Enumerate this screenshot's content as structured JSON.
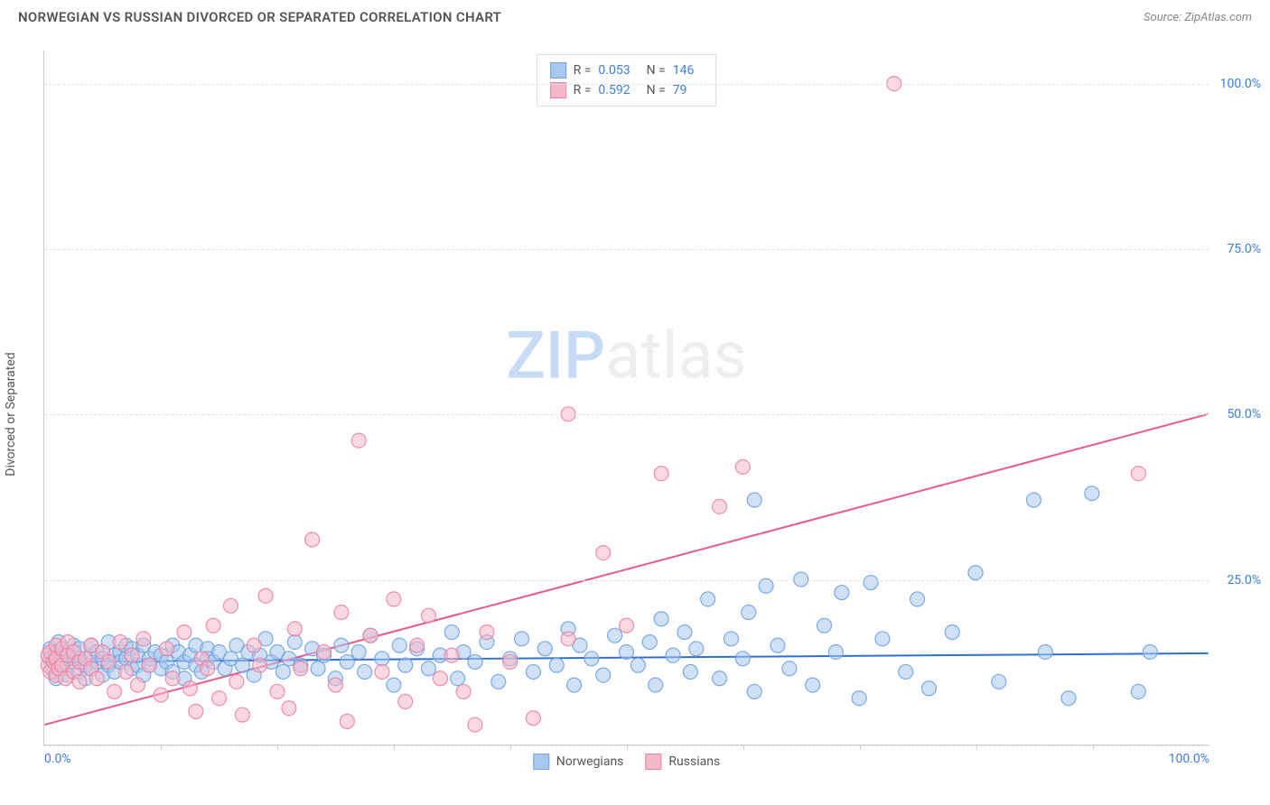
{
  "title": "NORWEGIAN VS RUSSIAN DIVORCED OR SEPARATED CORRELATION CHART",
  "source": "Source: ZipAtlas.com",
  "watermark_zip": "ZIP",
  "watermark_rest": "atlas",
  "ylabel": "Divorced or Separated",
  "chart": {
    "type": "scatter",
    "xlim": [
      0,
      100
    ],
    "ylim": [
      0,
      105
    ],
    "ytick_step": 25,
    "yticks": [
      "0.0%",
      "25.0%",
      "50.0%",
      "75.0%",
      "100.0%"
    ],
    "xticks_labels": {
      "0": "0.0%",
      "100": "100.0%"
    },
    "xminor_step": 10,
    "grid_color": "#e0e0e0",
    "axis_color": "#cccccc",
    "background": "#ffffff",
    "label_fontsize": 14,
    "tick_color": "#3b7dd8",
    "series": [
      {
        "name": "Norwegians",
        "color_fill": "#a9c8f0",
        "color_stroke": "#6ea2e0",
        "fill_opacity": 0.55,
        "stroke_opacity": 0.9,
        "marker_r": 8,
        "R": "0.053",
        "N": "146",
        "trend": {
          "y_at_x0": 12.5,
          "y_at_x100": 13.8,
          "color": "#2f6fd0",
          "width": 2
        },
        "points": [
          [
            0.5,
            13
          ],
          [
            0.5,
            14.5
          ],
          [
            0.8,
            11
          ],
          [
            1,
            12.5
          ],
          [
            1,
            14
          ],
          [
            1,
            10
          ],
          [
            1.2,
            15.5
          ],
          [
            1.5,
            13
          ],
          [
            1.5,
            11.5
          ],
          [
            1.8,
            14
          ],
          [
            2,
            12
          ],
          [
            2,
            13.5
          ],
          [
            2,
            10.5
          ],
          [
            2.5,
            15
          ],
          [
            2.5,
            12.5
          ],
          [
            3,
            11
          ],
          [
            3,
            13
          ],
          [
            3,
            14.5
          ],
          [
            3.5,
            12
          ],
          [
            3.5,
            10
          ],
          [
            4,
            13.5
          ],
          [
            4,
            15
          ],
          [
            4,
            11.5
          ],
          [
            4.5,
            12.5
          ],
          [
            4.5,
            14
          ],
          [
            5,
            13
          ],
          [
            5,
            10.5
          ],
          [
            5.5,
            12
          ],
          [
            5.5,
            15.5
          ],
          [
            6,
            13.5
          ],
          [
            6,
            11
          ],
          [
            6.5,
            14
          ],
          [
            6.5,
            12.5
          ],
          [
            7,
            13
          ],
          [
            7,
            15
          ],
          [
            7.5,
            11.5
          ],
          [
            7.5,
            14.5
          ],
          [
            8,
            12
          ],
          [
            8,
            13.5
          ],
          [
            8.5,
            10.5
          ],
          [
            8.5,
            15
          ],
          [
            9,
            13
          ],
          [
            9,
            12
          ],
          [
            9.5,
            14
          ],
          [
            10,
            11.5
          ],
          [
            10,
            13.5
          ],
          [
            10.5,
            12.5
          ],
          [
            11,
            15
          ],
          [
            11,
            11
          ],
          [
            11.5,
            14
          ],
          [
            12,
            12.5
          ],
          [
            12,
            10
          ],
          [
            12.5,
            13.5
          ],
          [
            13,
            15
          ],
          [
            13,
            12
          ],
          [
            13.5,
            11
          ],
          [
            14,
            14.5
          ],
          [
            14,
            13
          ],
          [
            14.5,
            12.5
          ],
          [
            15,
            14
          ],
          [
            15.5,
            11.5
          ],
          [
            16,
            13
          ],
          [
            16.5,
            15
          ],
          [
            17,
            12
          ],
          [
            17.5,
            14
          ],
          [
            18,
            10.5
          ],
          [
            18.5,
            13.5
          ],
          [
            19,
            16
          ],
          [
            19.5,
            12.5
          ],
          [
            20,
            14
          ],
          [
            20.5,
            11
          ],
          [
            21,
            13
          ],
          [
            21.5,
            15.5
          ],
          [
            22,
            12
          ],
          [
            23,
            14.5
          ],
          [
            23.5,
            11.5
          ],
          [
            24,
            13.5
          ],
          [
            25,
            10
          ],
          [
            25.5,
            15
          ],
          [
            26,
            12.5
          ],
          [
            27,
            14
          ],
          [
            27.5,
            11
          ],
          [
            28,
            16.5
          ],
          [
            29,
            13
          ],
          [
            30,
            9
          ],
          [
            30.5,
            15
          ],
          [
            31,
            12
          ],
          [
            32,
            14.5
          ],
          [
            33,
            11.5
          ],
          [
            34,
            13.5
          ],
          [
            35,
            17
          ],
          [
            35.5,
            10
          ],
          [
            36,
            14
          ],
          [
            37,
            12.5
          ],
          [
            38,
            15.5
          ],
          [
            39,
            9.5
          ],
          [
            40,
            13
          ],
          [
            41,
            16
          ],
          [
            42,
            11
          ],
          [
            43,
            14.5
          ],
          [
            44,
            12
          ],
          [
            45,
            17.5
          ],
          [
            45.5,
            9
          ],
          [
            46,
            15
          ],
          [
            47,
            13
          ],
          [
            48,
            10.5
          ],
          [
            49,
            16.5
          ],
          [
            50,
            14
          ],
          [
            51,
            12
          ],
          [
            52,
            15.5
          ],
          [
            52.5,
            9
          ],
          [
            53,
            19
          ],
          [
            54,
            13.5
          ],
          [
            55,
            17
          ],
          [
            55.5,
            11
          ],
          [
            56,
            14.5
          ],
          [
            57,
            22
          ],
          [
            58,
            10
          ],
          [
            59,
            16
          ],
          [
            60,
            13
          ],
          [
            60.5,
            20
          ],
          [
            61,
            8
          ],
          [
            62,
            24
          ],
          [
            63,
            15
          ],
          [
            64,
            11.5
          ],
          [
            65,
            25
          ],
          [
            66,
            9
          ],
          [
            67,
            18
          ],
          [
            68,
            14
          ],
          [
            68.5,
            23
          ],
          [
            70,
            7
          ],
          [
            71,
            24.5
          ],
          [
            72,
            16
          ],
          [
            74,
            11
          ],
          [
            75,
            22
          ],
          [
            76,
            8.5
          ],
          [
            78,
            17
          ],
          [
            80,
            26
          ],
          [
            82,
            9.5
          ],
          [
            85,
            37
          ],
          [
            86,
            14
          ],
          [
            88,
            7
          ],
          [
            90,
            38
          ],
          [
            94,
            8
          ],
          [
            95,
            14
          ],
          [
            61,
            37
          ]
        ]
      },
      {
        "name": "Russians",
        "color_fill": "#f5b8c8",
        "color_stroke": "#e884a3",
        "fill_opacity": 0.55,
        "stroke_opacity": 0.9,
        "marker_r": 8,
        "R": "0.592",
        "N": "79",
        "trend": {
          "y_at_x0": 3,
          "y_at_x100": 50,
          "color": "#e85a8a",
          "width": 2
        },
        "points": [
          [
            0.3,
            12
          ],
          [
            0.3,
            13.5
          ],
          [
            0.5,
            11
          ],
          [
            0.5,
            14
          ],
          [
            0.8,
            12.5
          ],
          [
            1,
            10.5
          ],
          [
            1,
            15
          ],
          [
            1,
            13
          ],
          [
            1.2,
            11.5
          ],
          [
            1.5,
            14.5
          ],
          [
            1.5,
            12
          ],
          [
            1.8,
            10
          ],
          [
            2,
            13.5
          ],
          [
            2,
            15.5
          ],
          [
            2.5,
            11
          ],
          [
            2.5,
            14
          ],
          [
            3,
            12.5
          ],
          [
            3,
            9.5
          ],
          [
            3.5,
            13
          ],
          [
            4,
            15
          ],
          [
            4,
            11.5
          ],
          [
            4.5,
            10
          ],
          [
            5,
            14
          ],
          [
            5.5,
            12.5
          ],
          [
            6,
            8
          ],
          [
            6.5,
            15.5
          ],
          [
            7,
            11
          ],
          [
            7.5,
            13.5
          ],
          [
            8,
            9
          ],
          [
            8.5,
            16
          ],
          [
            9,
            12
          ],
          [
            10,
            7.5
          ],
          [
            10.5,
            14.5
          ],
          [
            11,
            10
          ],
          [
            12,
            17
          ],
          [
            12.5,
            8.5
          ],
          [
            13,
            5
          ],
          [
            13.5,
            13
          ],
          [
            14,
            11.5
          ],
          [
            14.5,
            18
          ],
          [
            15,
            7
          ],
          [
            16,
            21
          ],
          [
            16.5,
            9.5
          ],
          [
            17,
            4.5
          ],
          [
            18,
            15
          ],
          [
            18.5,
            12
          ],
          [
            19,
            22.5
          ],
          [
            20,
            8
          ],
          [
            21,
            5.5
          ],
          [
            21.5,
            17.5
          ],
          [
            22,
            11.5
          ],
          [
            23,
            31
          ],
          [
            24,
            14
          ],
          [
            25,
            9
          ],
          [
            25.5,
            20
          ],
          [
            26,
            3.5
          ],
          [
            27,
            46
          ],
          [
            28,
            16.5
          ],
          [
            29,
            11
          ],
          [
            30,
            22
          ],
          [
            31,
            6.5
          ],
          [
            32,
            15
          ],
          [
            33,
            19.5
          ],
          [
            34,
            10
          ],
          [
            35,
            13.5
          ],
          [
            36,
            8
          ],
          [
            37,
            3
          ],
          [
            38,
            17
          ],
          [
            40,
            12.5
          ],
          [
            42,
            4
          ],
          [
            45,
            50
          ],
          [
            45,
            16
          ],
          [
            48,
            29
          ],
          [
            50,
            18
          ],
          [
            53,
            41
          ],
          [
            58,
            36
          ],
          [
            60,
            42
          ],
          [
            73,
            100
          ],
          [
            94,
            41
          ]
        ]
      }
    ]
  }
}
